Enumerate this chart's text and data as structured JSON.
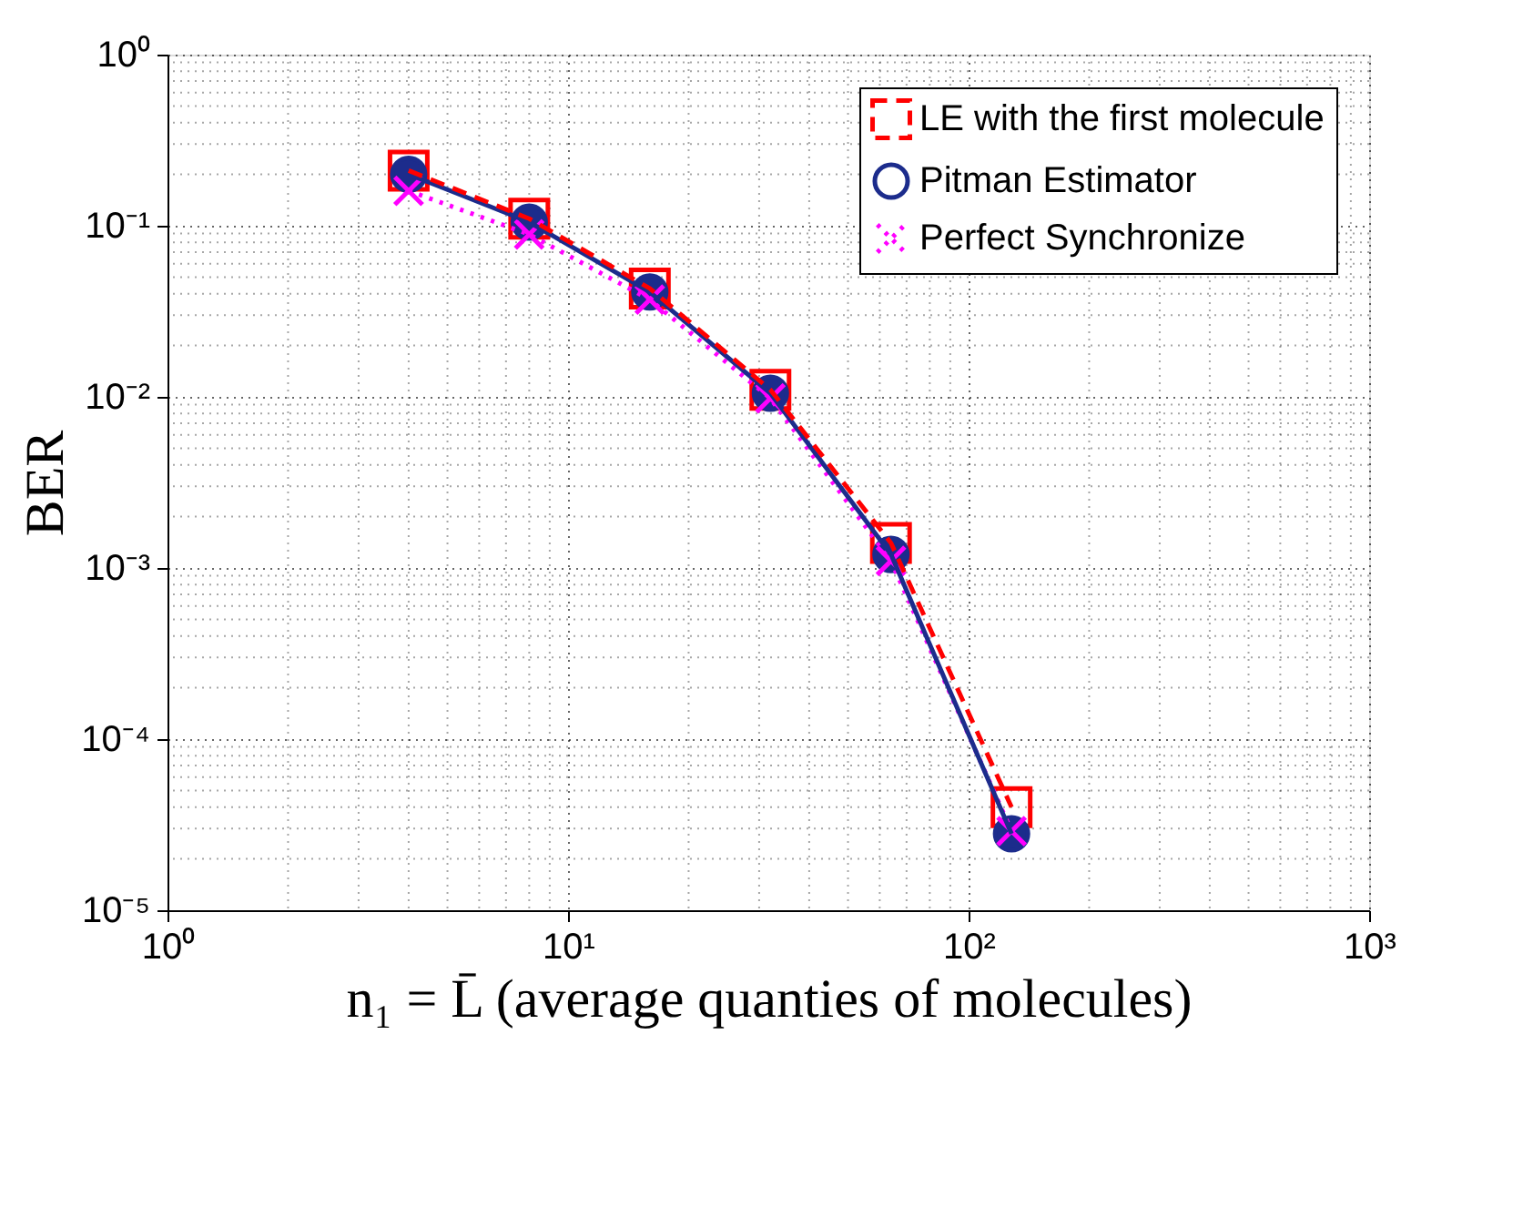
{
  "chart_data": {
    "type": "line",
    "xlabel": "n₁ = L̄ (average quanties of molecules)",
    "ylabel": "BER",
    "x": [
      4,
      8,
      16,
      32,
      64,
      128
    ],
    "series": [
      {
        "name": "LE with the first molecule",
        "color": "#ff0000",
        "marker": "square",
        "line_style": "dashed",
        "values": [
          0.21,
          0.11,
          0.043,
          0.011,
          0.0014,
          4e-05
        ]
      },
      {
        "name": "Pitman Estimator",
        "color": "#1c2c8c",
        "marker": "circle",
        "line_style": "solid",
        "values": [
          0.2,
          0.105,
          0.041,
          0.0105,
          0.0012,
          2.8e-05
        ]
      },
      {
        "name": "Perfect Synchronize",
        "color": "#ff00ff",
        "marker": "cross",
        "line_style": "dotted",
        "values": [
          0.16,
          0.089,
          0.037,
          0.0098,
          0.0011,
          2.9e-05
        ]
      }
    ],
    "log": "xy",
    "xlim": [
      1,
      1000
    ],
    "ylim": [
      1e-05,
      1
    ],
    "xticks": [
      {
        "value": 1,
        "label": "10⁰"
      },
      {
        "value": 10,
        "label": "10¹"
      },
      {
        "value": 100,
        "label": "10²"
      },
      {
        "value": 1000,
        "label": "10³"
      }
    ],
    "yticks": [
      {
        "value": 1e-05,
        "label": "10⁻⁵"
      },
      {
        "value": 0.0001,
        "label": "10⁻⁴"
      },
      {
        "value": 0.001,
        "label": "10⁻³"
      },
      {
        "value": 0.01,
        "label": "10⁻²"
      },
      {
        "value": 0.1,
        "label": "10⁻¹"
      },
      {
        "value": 1,
        "label": "10⁰"
      }
    ],
    "grid": true,
    "legend": "top right"
  }
}
